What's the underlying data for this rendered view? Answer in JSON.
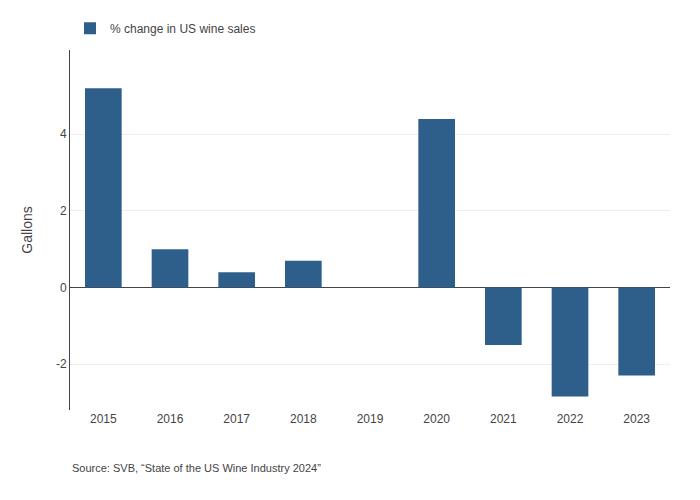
{
  "chart_data": {
    "type": "bar",
    "ylabel": "Gallons",
    "categories": [
      "2015",
      "2016",
      "2017",
      "2018",
      "2019",
      "2020",
      "2021",
      "2022",
      "2023"
    ],
    "series": [
      {
        "name": "% change in US wine sales",
        "color": "#2e5f8a",
        "values": [
          5.2,
          1.0,
          0.4,
          0.7,
          0.0,
          4.4,
          -1.5,
          -2.85,
          -2.3
        ]
      }
    ],
    "ylim": [
      -3.2,
      6.2
    ],
    "yticks": [
      -2,
      0,
      2,
      4
    ],
    "grid": true,
    "legend": "upper left",
    "annotations": [
      "Source: SVB, “State of the US Wine Industry 2024”"
    ]
  }
}
